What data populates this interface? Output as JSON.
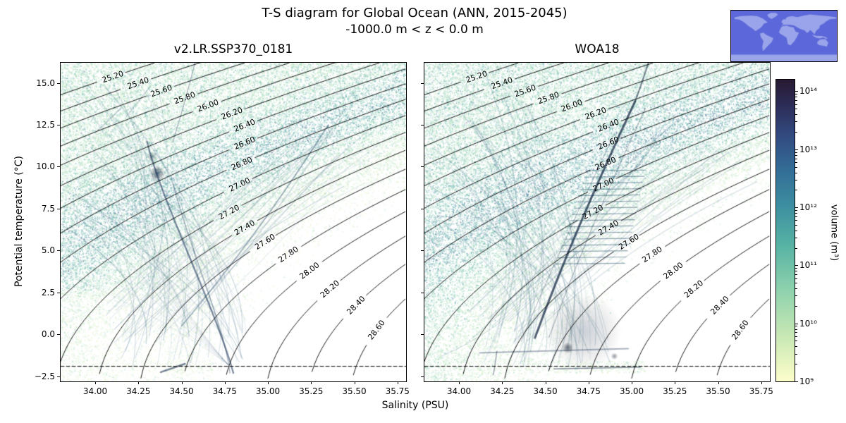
{
  "header": {
    "title": "T-S diagram for Global Ocean (ANN, 2015-2045)",
    "subtitle": "-1000.0 m < z < 0.0 m"
  },
  "chart_data": {
    "type": "heatmap",
    "description": "Volumetric T-S (temperature-salinity) diagrams: model vs observations, with potential density contours",
    "panels": [
      {
        "title": "v2.LR.SSP370_0181"
      },
      {
        "title": "WOA18"
      }
    ],
    "xlabel": "Salinity (PSU)",
    "ylabel": "Potential temperature (°C)",
    "xlim": [
      33.8,
      35.8
    ],
    "ylim": [
      -2.8,
      16.2
    ],
    "xticks": [
      34.0,
      34.25,
      34.5,
      34.75,
      35.0,
      35.25,
      35.5,
      35.75
    ],
    "xtick_labels": [
      "34.00",
      "34.25",
      "34.50",
      "34.75",
      "35.00",
      "35.25",
      "35.50",
      "35.75"
    ],
    "yticks": [
      -2.5,
      0.0,
      2.5,
      5.0,
      7.5,
      10.0,
      12.5,
      15.0
    ],
    "ytick_labels": [
      "−2.5",
      "0.0",
      "2.5",
      "5.0",
      "7.5",
      "10.0",
      "12.5",
      "15.0"
    ],
    "contour_levels": [
      25.2,
      25.4,
      25.6,
      25.8,
      26.0,
      26.2,
      26.4,
      26.6,
      26.8,
      27.0,
      27.2,
      27.4,
      27.6,
      27.8,
      28.0,
      28.2,
      28.4,
      28.6
    ],
    "contour_labels": [
      "25.20",
      "25.40",
      "25.60",
      "25.80",
      "26.00",
      "26.20",
      "26.40",
      "26.60",
      "26.80",
      "27.00",
      "27.20",
      "27.40",
      "27.60",
      "27.80",
      "28.00",
      "28.20",
      "28.40",
      "28.60"
    ],
    "freezing_line_T": -1.9,
    "colorbar": {
      "label": "volume (m³)",
      "tick_exponents": [
        9,
        10,
        11,
        12,
        13,
        14
      ],
      "tick_labels": [
        "10⁹",
        "10¹⁰",
        "10¹¹",
        "10¹²",
        "10¹³",
        "10¹⁴"
      ],
      "exp_min": 9,
      "exp_max": 14.2
    },
    "colormap_stops": [
      [
        0.0,
        "#fdfecb"
      ],
      [
        0.15,
        "#c8e8b4"
      ],
      [
        0.3,
        "#8fd2ad"
      ],
      [
        0.45,
        "#57b3a4"
      ],
      [
        0.58,
        "#3d8fa0"
      ],
      [
        0.7,
        "#336d96"
      ],
      [
        0.82,
        "#32497e"
      ],
      [
        0.92,
        "#2c2b55"
      ],
      [
        1.0,
        "#281a33"
      ]
    ],
    "map_inset": {
      "ocean": "#5c68d9",
      "land": "#9aa4ea"
    }
  }
}
